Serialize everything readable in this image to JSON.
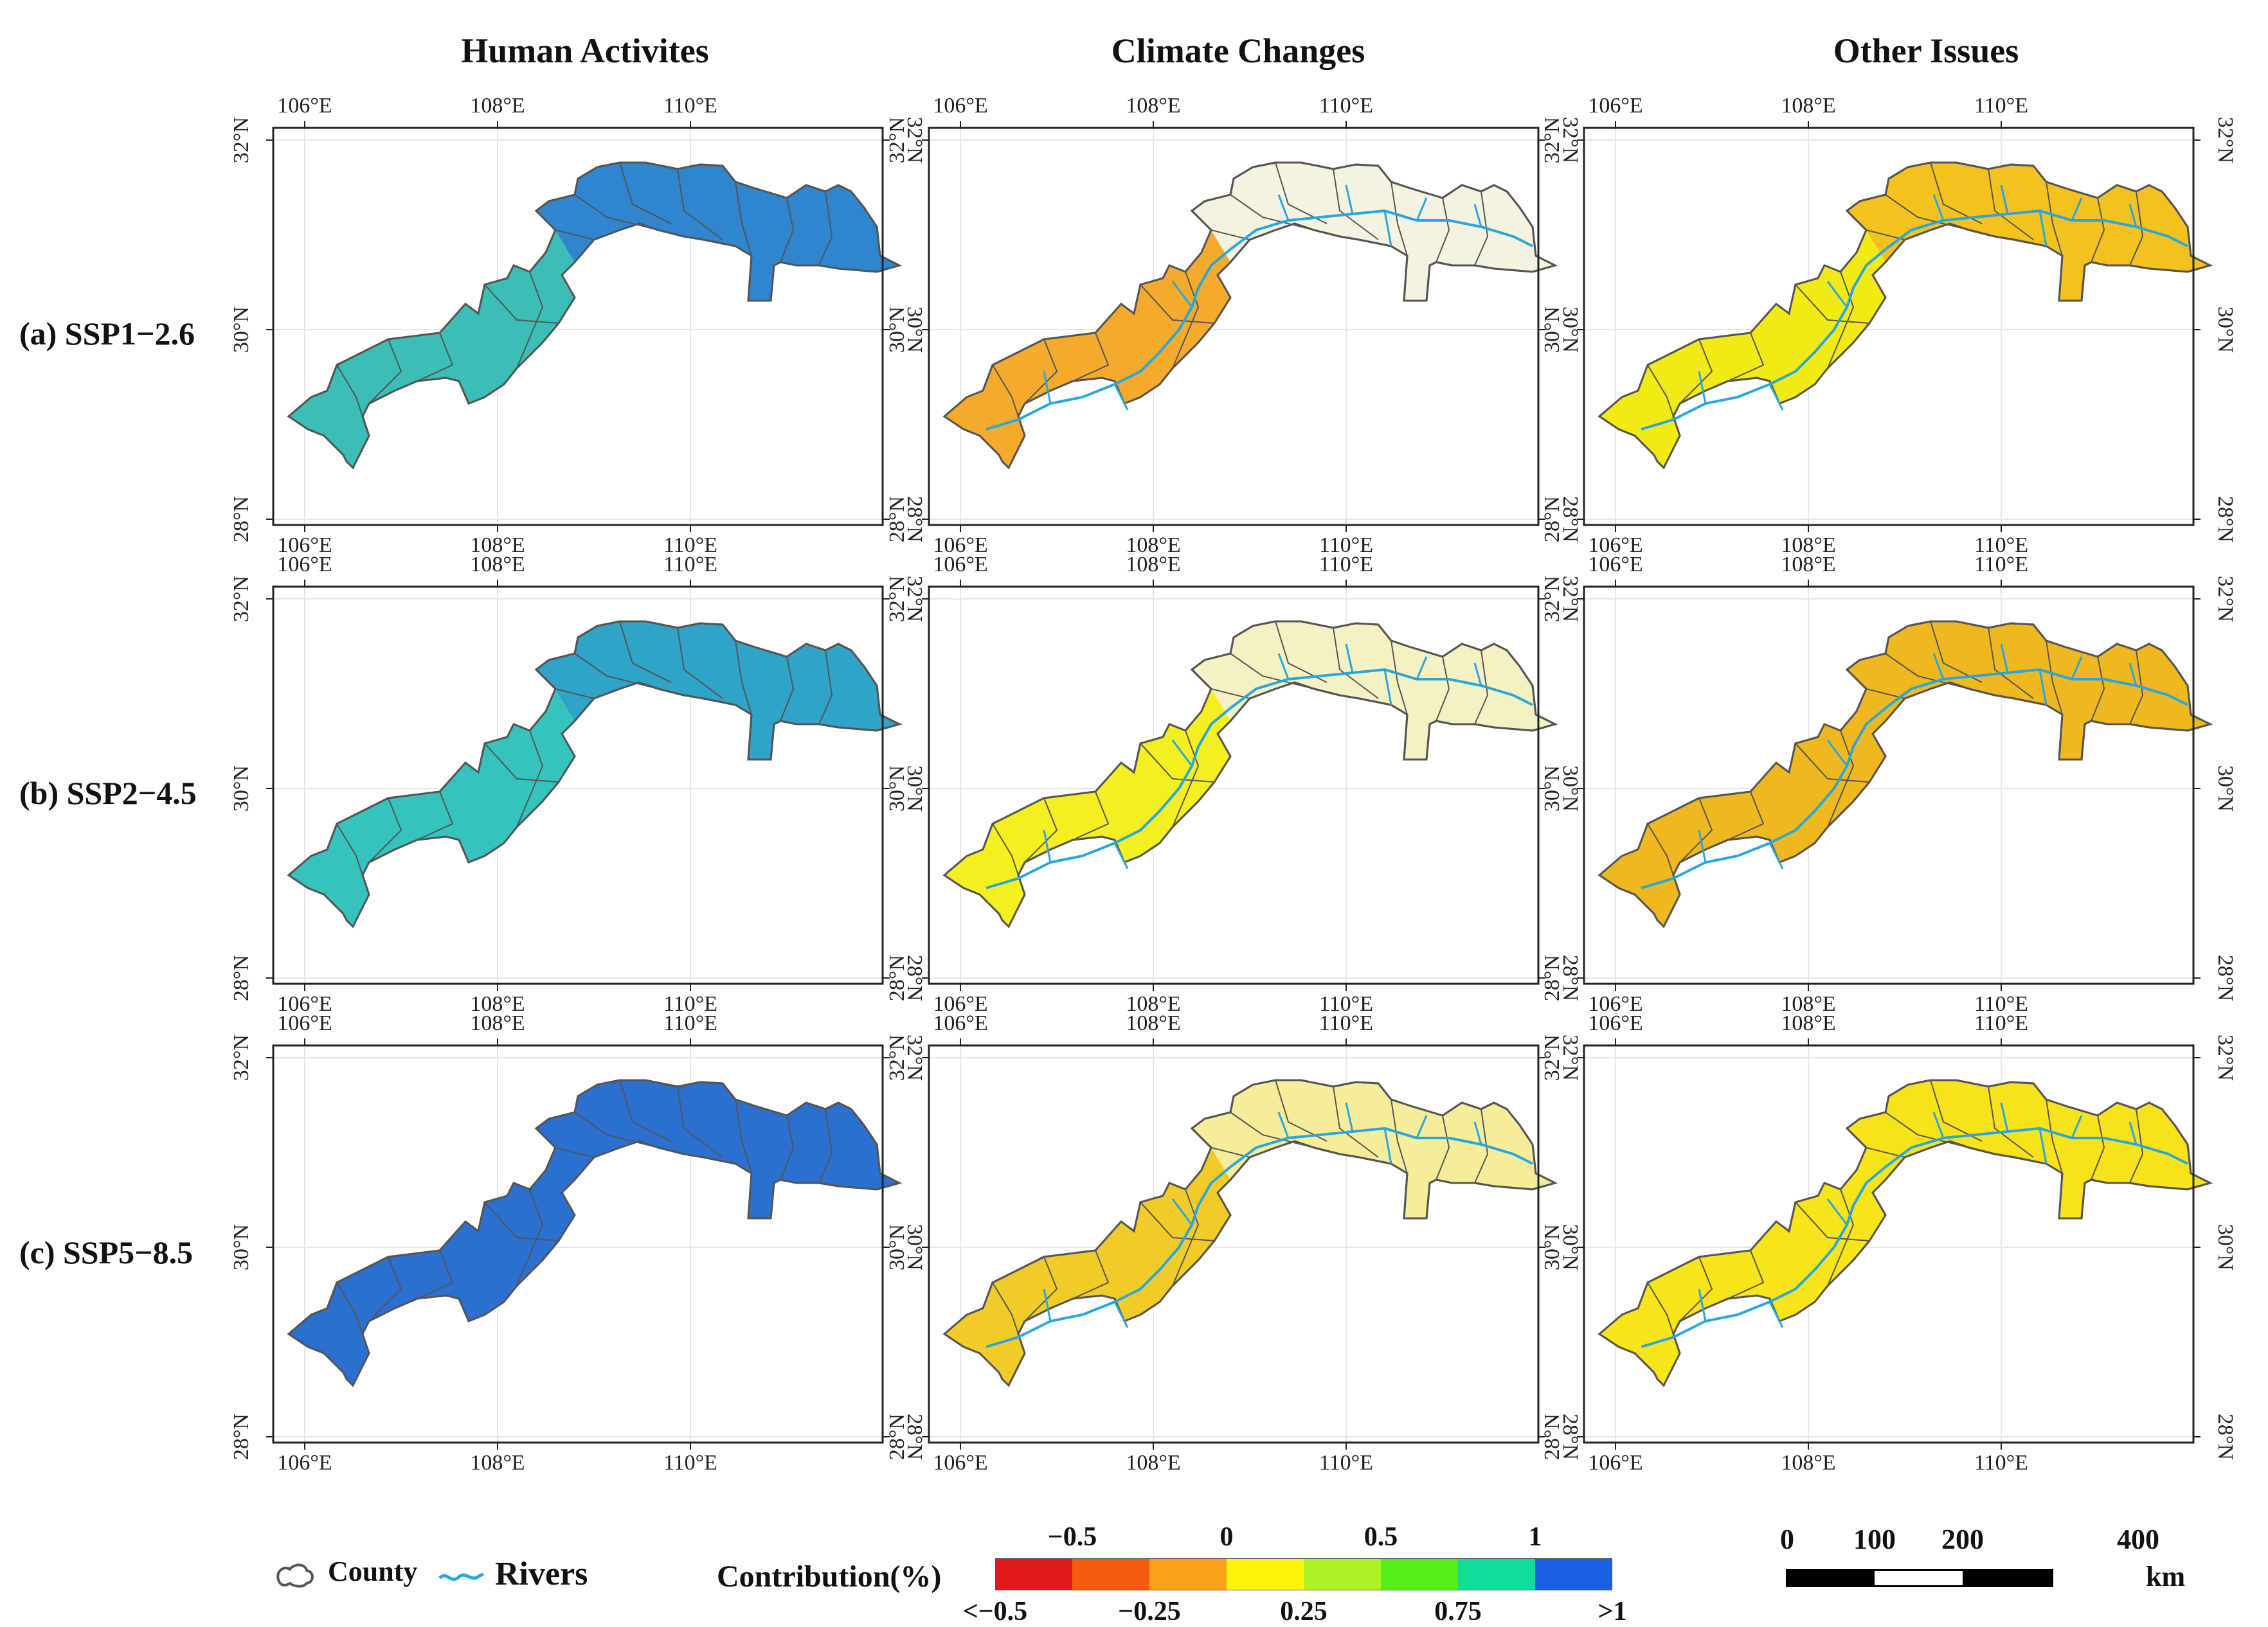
{
  "columns": [
    "Human Activites",
    "Climate Changes",
    "Other Issues"
  ],
  "rows": [
    "(a) SSP1−2.6",
    "(b) SSP2−4.5",
    "(c) SSP5−8.5"
  ],
  "axes": {
    "lon_ticks": [
      "106°E",
      "108°E",
      "110°E"
    ],
    "lat_ticks": [
      "32°N",
      "30°N",
      "28°N"
    ]
  },
  "legend": {
    "county_label": "County",
    "rivers_label": "Rivers",
    "county_icon": "county-outline-icon",
    "rivers_icon": "river-line-icon",
    "colorbar_title": "Contribution(%)",
    "colorbar_top_labels": [
      "−0.5",
      "0",
      "0.5",
      "1"
    ],
    "colorbar_bottom_labels": [
      "<−0.5",
      "−0.25",
      "0.25",
      "0.75",
      ">1"
    ],
    "colorbar_colors": [
      "#e31a1c",
      "#f55a11",
      "#f8a218",
      "#fcf40a",
      "#aef226",
      "#56ee18",
      "#12dc9c",
      "#1a5ee6"
    ]
  },
  "scale_bar": {
    "labels": [
      "0",
      "100",
      "200",
      "400"
    ],
    "unit": "km"
  },
  "colors": {
    "river": "#27a6df",
    "county_border": "#555555",
    "panel_fills": [
      [
        "#2f86cf",
        "#f5f2e0",
        "#f3c21e"
      ],
      [
        "#2fa3c8",
        "#f4f2c2",
        "#eeb81e"
      ],
      [
        "#2b6fd0",
        "#f5ed9a",
        "#f8e21a"
      ]
    ],
    "west_fills": [
      [
        "#3cc4b2",
        "#f4a31a",
        "#f2ee14"
      ],
      [
        "#39c7bb",
        "#f4ee10",
        "#eeb81e"
      ],
      [
        "#2b6fd0",
        "#f1c81c",
        "#f7e51a"
      ]
    ]
  }
}
